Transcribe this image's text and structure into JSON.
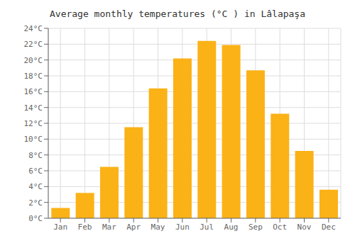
{
  "chart_data": {
    "type": "bar",
    "title": "Average monthly temperatures (°C ) in Lâlapaşa",
    "categories": [
      "Jan",
      "Feb",
      "Mar",
      "Apr",
      "May",
      "Jun",
      "Jul",
      "Aug",
      "Sep",
      "Oct",
      "Nov",
      "Dec"
    ],
    "values": [
      1.3,
      3.2,
      6.5,
      11.5,
      16.4,
      20.2,
      22.4,
      21.9,
      18.7,
      13.2,
      8.5,
      3.6
    ],
    "color": "#FBB217",
    "ylim": [
      0,
      24
    ],
    "yticks": [
      {
        "value": 0,
        "label": "0°C"
      },
      {
        "value": 2,
        "label": "2°C"
      },
      {
        "value": 4,
        "label": "4°C"
      },
      {
        "value": 6,
        "label": "6°C"
      },
      {
        "value": 8,
        "label": "8°C"
      },
      {
        "value": 10,
        "label": "10°C"
      },
      {
        "value": 12,
        "label": "12°C"
      },
      {
        "value": 14,
        "label": "14°C"
      },
      {
        "value": 16,
        "label": "16°C"
      },
      {
        "value": 18,
        "label": "18°C"
      },
      {
        "value": 20,
        "label": "20°C"
      },
      {
        "value": 22,
        "label": "22°C"
      },
      {
        "value": 24,
        "label": "24°C"
      }
    ],
    "grid": true
  }
}
